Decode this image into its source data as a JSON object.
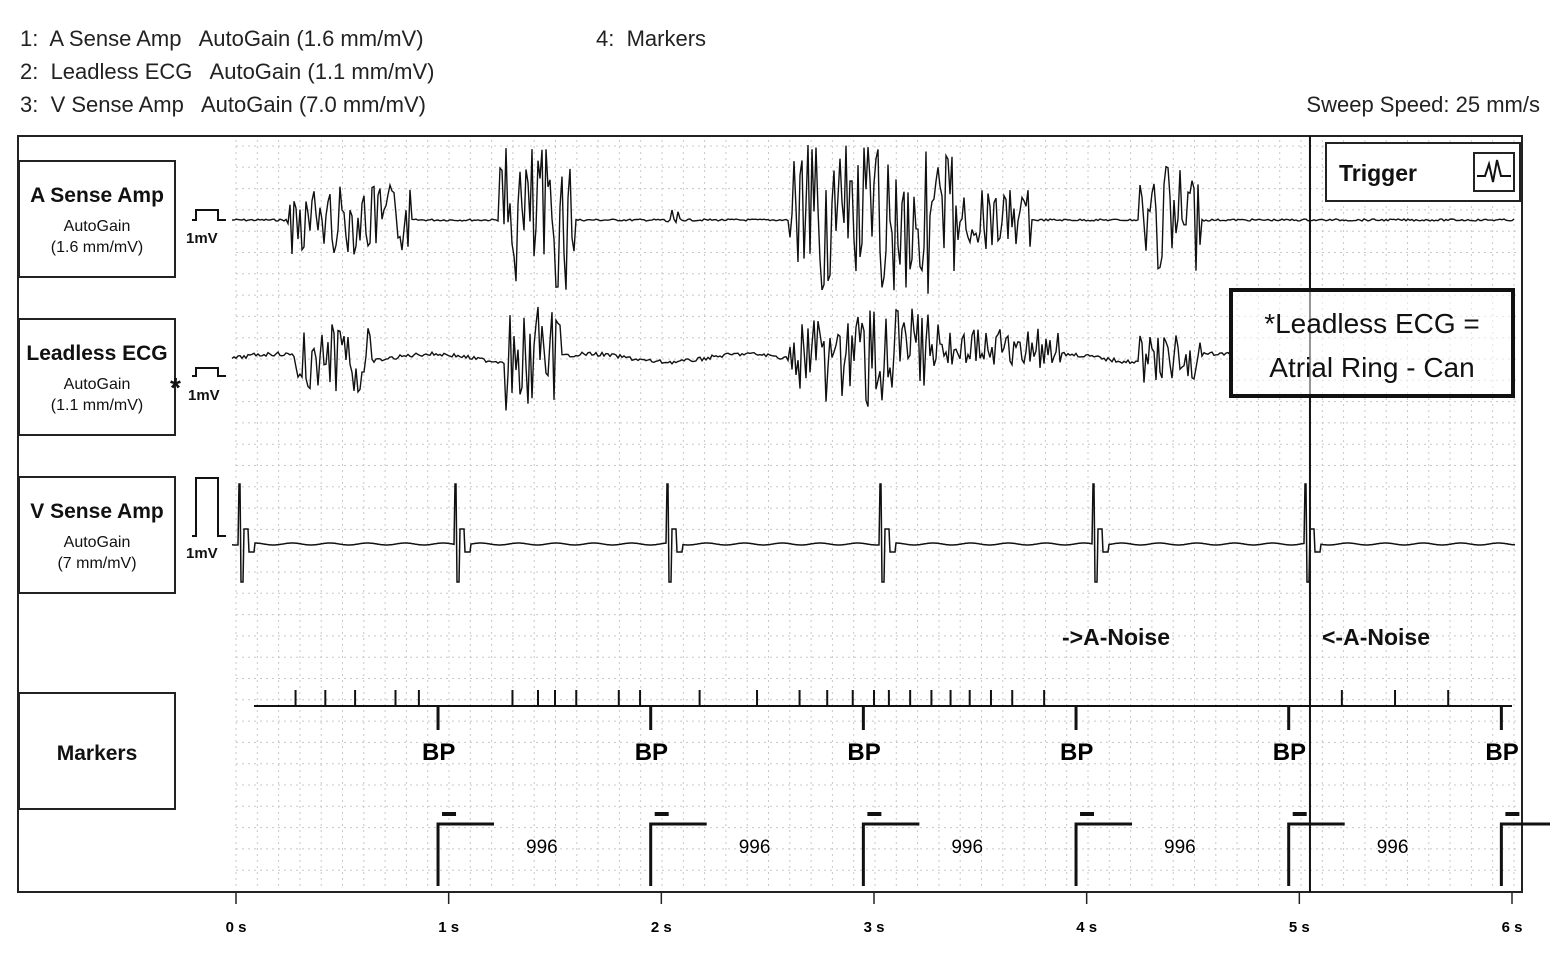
{
  "header": {
    "ch1": "1:  A Sense Amp   AutoGain (1.6 mm/mV)",
    "ch2": "2:  Leadless ECG   AutoGain (1.1 mm/mV)",
    "ch3": "3:  V Sense Amp   AutoGain (7.0 mm/mV)",
    "ch4": "4:  Markers",
    "sweep": "Sweep Speed: 25 mm/s"
  },
  "channels": [
    {
      "name": "A Sense Amp",
      "gain_label": "AutoGain",
      "gain_value": "(1.6 mm/mV)",
      "cal": "1mV"
    },
    {
      "name": "Leadless ECG",
      "gain_label": "AutoGain",
      "gain_value": "(1.1 mm/mV)",
      "cal": "1mV",
      "asterisk": "*"
    },
    {
      "name": "V Sense Amp",
      "gain_label": "AutoGain",
      "gain_value": "(7 mm/mV)",
      "cal": "1mV"
    },
    {
      "name": "Markers"
    }
  ],
  "trigger": {
    "label": "Trigger",
    "icon": "waveform-icon"
  },
  "note": {
    "line1": "*Leadless ECG =",
    "line2": "Atrial Ring - Can"
  },
  "annotations": {
    "noise_start": "->A-Noise",
    "noise_end": "<-A-Noise"
  },
  "time_axis": {
    "unit": "s",
    "ticks": [
      "0 s",
      "1 s",
      "2 s",
      "3 s",
      "4 s",
      "5 s",
      "6 s"
    ],
    "range": [
      0,
      6
    ]
  },
  "markers": {
    "paced_label": "BP",
    "paced_times_s": [
      0.95,
      1.95,
      2.95,
      3.95,
      4.95,
      5.95
    ],
    "interval_label": "996",
    "sense_marks_s": [
      0.28,
      0.42,
      0.56,
      0.75,
      0.86,
      1.3,
      1.42,
      1.5,
      1.6,
      1.8,
      1.9,
      2.18,
      2.45,
      2.65,
      2.78,
      2.9,
      3.0,
      3.07,
      3.17,
      3.27,
      3.36,
      3.45,
      3.55,
      3.65,
      3.8,
      5.2,
      5.45,
      5.7
    ]
  },
  "trigger_time_s": 5.05,
  "colors": {
    "trace": "#111111",
    "grid": "#c8c8c8",
    "frame": "#222222"
  }
}
